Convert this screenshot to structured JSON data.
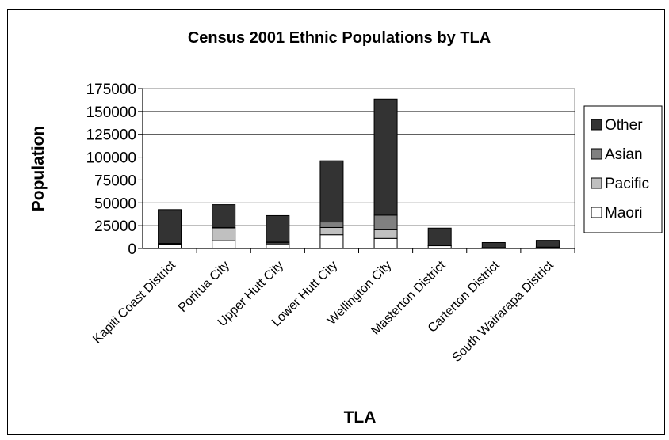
{
  "chart_data": {
    "type": "bar",
    "stacked": true,
    "title": "Census 2001 Ethnic Populations by TLA",
    "xlabel": "TLA",
    "ylabel": "Population",
    "ylim": [
      0,
      175000
    ],
    "yticks": [
      "0",
      "25000",
      "50000",
      "75000",
      "100000",
      "125000",
      "150000",
      "175000"
    ],
    "ytick_values": [
      0,
      25000,
      50000,
      75000,
      100000,
      125000,
      150000,
      175000
    ],
    "grid": true,
    "legend_position": "right",
    "categories": [
      "Kapiti Coast District",
      "Porirua City",
      "Upper Hutt City",
      "Lower Hutt City",
      "Wellington City",
      "Masterton District",
      "Carterton District",
      "South Wairarapa District"
    ],
    "series": [
      {
        "name": "Maori",
        "color": "#ffffff",
        "values": [
          4000,
          8500,
          4500,
          15000,
          11000,
          3000,
          800,
          1200
        ]
      },
      {
        "name": "Pacific",
        "color": "#c0c0c0",
        "values": [
          800,
          13000,
          1500,
          8000,
          9500,
          500,
          100,
          200
        ]
      },
      {
        "name": "Asian",
        "color": "#808080",
        "values": [
          800,
          1500,
          1000,
          6000,
          16000,
          300,
          100,
          100
        ]
      },
      {
        "name": "Other",
        "color": "#333333",
        "values": [
          37000,
          25000,
          29000,
          67000,
          127000,
          18500,
          5500,
          7500
        ]
      }
    ]
  }
}
